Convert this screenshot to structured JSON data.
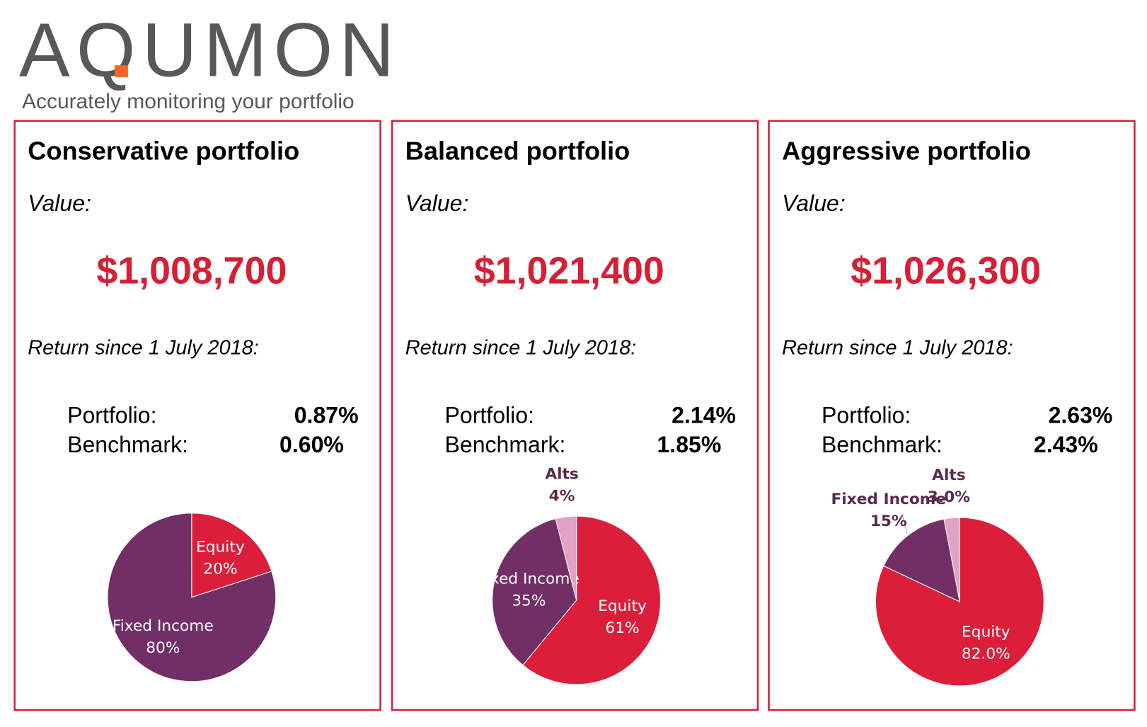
{
  "header": {
    "logo": "AQUMON",
    "tagline": "Accurately monitoring your portfolio"
  },
  "panels": [
    {
      "title": "Conservative portfolio",
      "value_label": "Value:",
      "value": "$1,008,700",
      "return_label": "Return since 1 July 2018:",
      "portfolio_label": "Portfolio:",
      "portfolio": "0.87%",
      "benchmark_label": "Benchmark:",
      "benchmark": "0.60%"
    },
    {
      "title": "Balanced portfolio",
      "value_label": "Value:",
      "value": "$1,021,400",
      "return_label": "Return since 1 July 2018:",
      "portfolio_label": "Portfolio:",
      "portfolio": "2.14%",
      "benchmark_label": "Benchmark:",
      "benchmark": "1.85%"
    },
    {
      "title": "Aggressive portfolio",
      "value_label": "Value:",
      "value": "$1,026,300",
      "return_label": "Return since 1 July 2018:",
      "portfolio_label": "Portfolio:",
      "portfolio": "2.63%",
      "benchmark_label": "Benchmark:",
      "benchmark": "2.43%"
    }
  ],
  "chart_data": [
    {
      "type": "pie",
      "categories": [
        "Equity",
        "Fixed Income"
      ],
      "values": [
        20,
        80
      ],
      "value_labels": [
        "20%",
        "80%"
      ],
      "colors": [
        "#dc1e3a",
        "#722f66"
      ]
    },
    {
      "type": "pie",
      "categories": [
        "Equity",
        "Fixed Income",
        "Alts"
      ],
      "values": [
        61,
        35,
        4
      ],
      "value_labels": [
        "61%",
        "35%",
        "4%"
      ],
      "colors": [
        "#dc1e3a",
        "#722f66",
        "#e3a1c5"
      ]
    },
    {
      "type": "pie",
      "categories": [
        "Equity",
        "Fixed Income",
        "Alts"
      ],
      "values": [
        82.0,
        15,
        3.0
      ],
      "value_labels": [
        "82.0%",
        "15%",
        "3.0%"
      ],
      "colors": [
        "#dc1e3a",
        "#722f66",
        "#e3a1c5"
      ]
    }
  ]
}
